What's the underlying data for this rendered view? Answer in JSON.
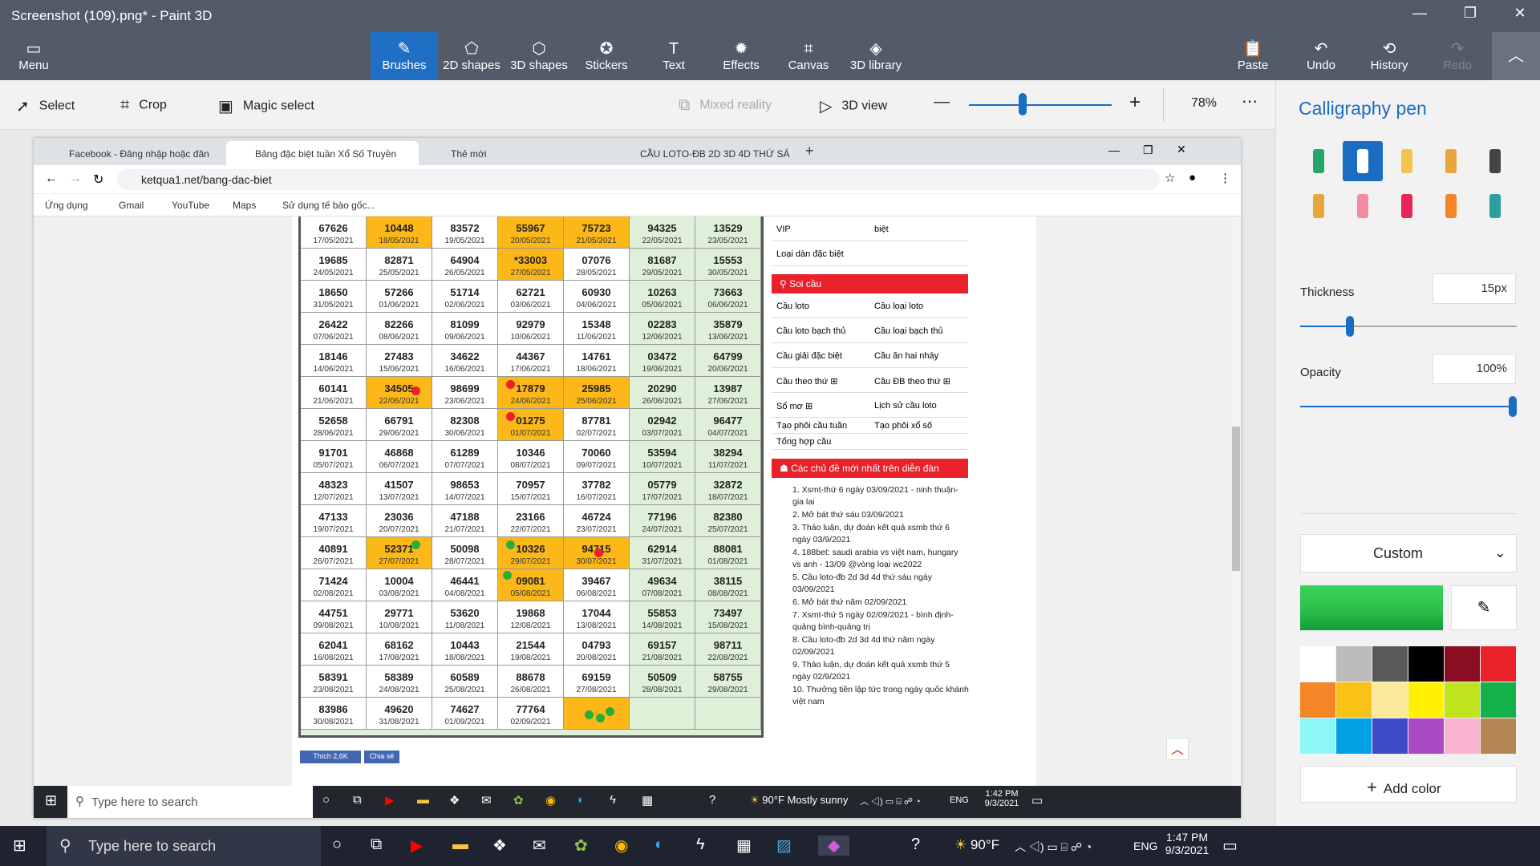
{
  "window": {
    "title": "Screenshot (109).png* - Paint 3D"
  },
  "menu": {
    "label": "Menu"
  },
  "ribbon": [
    {
      "label": "Brushes",
      "icon": "brush-icon"
    },
    {
      "label": "2D shapes",
      "icon": "2d-shapes-icon"
    },
    {
      "label": "3D shapes",
      "icon": "3d-shapes-icon"
    },
    {
      "label": "Stickers",
      "icon": "stickers-icon"
    },
    {
      "label": "Text",
      "icon": "text-icon"
    },
    {
      "label": "Effects",
      "icon": "effects-icon"
    },
    {
      "label": "Canvas",
      "icon": "canvas-icon"
    },
    {
      "label": "3D library",
      "icon": "3d-library-icon"
    }
  ],
  "ribbon_right": [
    {
      "label": "Paste"
    },
    {
      "label": "Undo"
    },
    {
      "label": "History"
    },
    {
      "label": "Redo"
    }
  ],
  "toolbar": {
    "select": "Select",
    "crop": "Crop",
    "magic": "Magic select",
    "mixed": "Mixed reality",
    "view3d": "3D view",
    "zoom": "78%"
  },
  "panel": {
    "title": "Calligraphy pen",
    "thickness_label": "Thickness",
    "thickness_value": "15px",
    "opacity_label": "Opacity",
    "opacity_value": "100%",
    "thickness_level": 0.23,
    "opacity_level": 1.0,
    "color_mode": "Custom",
    "add_color": "Add color",
    "current_color": "#2bbd4a",
    "palette": [
      "#ffffff",
      "#bcbcbc",
      "#5a5a5a",
      "#000000",
      "#8a0f22",
      "#e8212a",
      "#f48627",
      "#fac117",
      "#fde99b",
      "#fff100",
      "#bfe31d",
      "#13b14a",
      "#8df7f8",
      "#02a1e6",
      "#3e4bc8",
      "#a94bc4",
      "#f9b2d0",
      "#b68556"
    ]
  },
  "browser": {
    "tabs": [
      "Facebook - Đăng nhập hoặc đăn",
      "Bảng đặc biệt tuần Xổ Số Truyền",
      "Thẻ mới",
      "CẦU LOTO-ĐB 2D 3D 4D THỨ SÁ"
    ],
    "url": "ketqua1.net/bang-dac-biet",
    "bookmarks": [
      "Ứng dụng",
      "Gmail",
      "YouTube",
      "Maps",
      "Sử dụng tế bào gốc..."
    ]
  },
  "table_rows": [
    [
      [
        "67626",
        "17/05/2021"
      ],
      [
        "10448",
        "18/05/2021"
      ],
      [
        "83572",
        "19/05/2021"
      ],
      [
        "55967",
        "20/05/2021"
      ],
      [
        "75723",
        "21/05/2021"
      ],
      [
        "94325",
        "22/05/2021"
      ],
      [
        "13529",
        "23/05/2021"
      ]
    ],
    [
      [
        "19685",
        "24/05/2021"
      ],
      [
        "82871",
        "25/05/2021"
      ],
      [
        "64904",
        "26/05/2021"
      ],
      [
        "*33003",
        "27/05/2021"
      ],
      [
        "07076",
        "28/05/2021"
      ],
      [
        "81687",
        "29/05/2021"
      ],
      [
        "15553",
        "30/05/2021"
      ]
    ],
    [
      [
        "18650",
        "31/05/2021"
      ],
      [
        "57266",
        "01/06/2021"
      ],
      [
        "51714",
        "02/06/2021"
      ],
      [
        "62721",
        "03/06/2021"
      ],
      [
        "60930",
        "04/06/2021"
      ],
      [
        "10263",
        "05/06/2021"
      ],
      [
        "73663",
        "06/06/2021"
      ]
    ],
    [
      [
        "26422",
        "07/06/2021"
      ],
      [
        "82266",
        "08/06/2021"
      ],
      [
        "81099",
        "09/06/2021"
      ],
      [
        "92979",
        "10/06/2021"
      ],
      [
        "15348",
        "11/06/2021"
      ],
      [
        "02283",
        "12/06/2021"
      ],
      [
        "35879",
        "13/06/2021"
      ]
    ],
    [
      [
        "18146",
        "14/06/2021"
      ],
      [
        "27483",
        "15/06/2021"
      ],
      [
        "34622",
        "16/06/2021"
      ],
      [
        "44367",
        "17/06/2021"
      ],
      [
        "14761",
        "18/06/2021"
      ],
      [
        "03472",
        "19/06/2021"
      ],
      [
        "64799",
        "20/06/2021"
      ]
    ],
    [
      [
        "60141",
        "21/06/2021"
      ],
      [
        "34505",
        "22/06/2021"
      ],
      [
        "98699",
        "23/06/2021"
      ],
      [
        "17879",
        "24/06/2021"
      ],
      [
        "25985",
        "25/06/2021"
      ],
      [
        "20290",
        "26/06/2021"
      ],
      [
        "13987",
        "27/06/2021"
      ]
    ],
    [
      [
        "52658",
        "28/06/2021"
      ],
      [
        "66791",
        "29/06/2021"
      ],
      [
        "82308",
        "30/06/2021"
      ],
      [
        "01275",
        "01/07/2021"
      ],
      [
        "87781",
        "02/07/2021"
      ],
      [
        "02942",
        "03/07/2021"
      ],
      [
        "96477",
        "04/07/2021"
      ]
    ],
    [
      [
        "91701",
        "05/07/2021"
      ],
      [
        "46868",
        "06/07/2021"
      ],
      [
        "61289",
        "07/07/2021"
      ],
      [
        "10346",
        "08/07/2021"
      ],
      [
        "70060",
        "09/07/2021"
      ],
      [
        "53594",
        "10/07/2021"
      ],
      [
        "38294",
        "11/07/2021"
      ]
    ],
    [
      [
        "48323",
        "12/07/2021"
      ],
      [
        "41507",
        "13/07/2021"
      ],
      [
        "98653",
        "14/07/2021"
      ],
      [
        "70957",
        "15/07/2021"
      ],
      [
        "37782",
        "16/07/2021"
      ],
      [
        "05779",
        "17/07/2021"
      ],
      [
        "32872",
        "18/07/2021"
      ]
    ],
    [
      [
        "47133",
        "19/07/2021"
      ],
      [
        "23036",
        "20/07/2021"
      ],
      [
        "47188",
        "21/07/2021"
      ],
      [
        "23166",
        "22/07/2021"
      ],
      [
        "46724",
        "23/07/2021"
      ],
      [
        "77196",
        "24/07/2021"
      ],
      [
        "82380",
        "25/07/2021"
      ]
    ],
    [
      [
        "40891",
        "26/07/2021"
      ],
      [
        "52371",
        "27/07/2021"
      ],
      [
        "50098",
        "28/07/2021"
      ],
      [
        "10326",
        "29/07/2021"
      ],
      [
        "94715",
        "30/07/2021"
      ],
      [
        "62914",
        "31/07/2021"
      ],
      [
        "88081",
        "01/08/2021"
      ]
    ],
    [
      [
        "71424",
        "02/08/2021"
      ],
      [
        "10004",
        "03/08/2021"
      ],
      [
        "46441",
        "04/08/2021"
      ],
      [
        "09081",
        "05/08/2021"
      ],
      [
        "39467",
        "06/08/2021"
      ],
      [
        "49634",
        "07/08/2021"
      ],
      [
        "38115",
        "08/08/2021"
      ]
    ],
    [
      [
        "44751",
        "09/08/2021"
      ],
      [
        "29771",
        "10/08/2021"
      ],
      [
        "53620",
        "11/08/2021"
      ],
      [
        "19868",
        "12/08/2021"
      ],
      [
        "17044",
        "13/08/2021"
      ],
      [
        "55853",
        "14/08/2021"
      ],
      [
        "73497",
        "15/08/2021"
      ]
    ],
    [
      [
        "62041",
        "16/08/2021"
      ],
      [
        "68162",
        "17/08/2021"
      ],
      [
        "10443",
        "18/08/2021"
      ],
      [
        "21544",
        "19/08/2021"
      ],
      [
        "04793",
        "20/08/2021"
      ],
      [
        "69157",
        "21/08/2021"
      ],
      [
        "98711",
        "22/08/2021"
      ]
    ],
    [
      [
        "58391",
        "23/08/2021"
      ],
      [
        "58389",
        "24/08/2021"
      ],
      [
        "60589",
        "25/08/2021"
      ],
      [
        "88678",
        "26/08/2021"
      ],
      [
        "69159",
        "27/08/2021"
      ],
      [
        "50509",
        "28/08/2021"
      ],
      [
        "58755",
        "29/08/2021"
      ]
    ],
    [
      [
        "83986",
        "30/08/2021"
      ],
      [
        "49620",
        "31/08/2021"
      ],
      [
        "74627",
        "01/09/2021"
      ],
      [
        "77764",
        "02/09/2021"
      ],
      [
        "",
        ""
      ],
      [
        "",
        ""
      ],
      [
        "",
        ""
      ]
    ]
  ],
  "highlights": [
    "0-1",
    "0-3",
    "0-4",
    "1-3",
    "5-1",
    "5-3",
    "5-4",
    "6-3",
    "10-1",
    "10-3",
    "10-4",
    "11-3",
    "15-4"
  ],
  "side": {
    "vip": "VIP",
    "biet": "biệt",
    "loai_dan": "Loại dàn đặc biệt",
    "soi_cau": "Soi cầu",
    "links": [
      [
        "Cầu loto",
        "Cầu loại loto"
      ],
      [
        "Cầu loto bạch thủ",
        "Cầu loại bạch thủ"
      ],
      [
        "Cầu giải đặc biệt",
        "Cầu ăn hai nháy"
      ],
      [
        "Cầu theo thứ ⊞",
        "Cầu ĐB theo thứ ⊞"
      ],
      [
        "Sổ mơ ⊞",
        "Lịch sử cầu loto"
      ],
      [
        "Tạo phôi cầu tuần",
        "Tạo phôi xổ số"
      ],
      [
        "Tổng hợp cầu",
        ""
      ]
    ],
    "forum_head": "Các chủ đề mới nhất trên diễn đàn",
    "topics": [
      "1. Xsmt-thứ 6 ngày 03/09/2021 - ninh thuận-gia lai",
      "2. Mở bát thứ sáu 03/09/2021",
      "3. Thảo luận, dự đoán kết quả xsmb thứ 6 ngày 03/9/2021",
      "4. 188bet: saudi arabia vs việt nam, hungary vs anh - 13/09 @vòng loại wc2022",
      "5. Cầu loto-đb 2d 3d 4d thứ sáu ngày 03/09/2021",
      "6. Mở bát thứ năm 02/09/2021",
      "7. Xsmt-thứ 5 ngày 02/09/2021 - bình định-quảng bình-quảng trị",
      "8. Cầu loto-đb 2d 3d 4d thứ năm ngày 02/09/2021",
      "9. Thảo luận, dự đoán kết quả xsmb thứ 5 ngày 02/9/2021",
      "10. Thưởng tiền lập tức trong ngày quốc khánh việt nam"
    ],
    "like": "Thích 2,6K",
    "share": "Chia sẻ"
  },
  "inner_taskbar": {
    "search": "Type here to search",
    "weather": "90°F  Mostly sunny",
    "lang": "ENG",
    "time": "1:42 PM",
    "date": "9/3/2021"
  },
  "outer_taskbar": {
    "search": "Type here to search",
    "weather": "90°F",
    "lang": "ENG",
    "time": "1:47 PM",
    "date": "9/3/2021"
  }
}
